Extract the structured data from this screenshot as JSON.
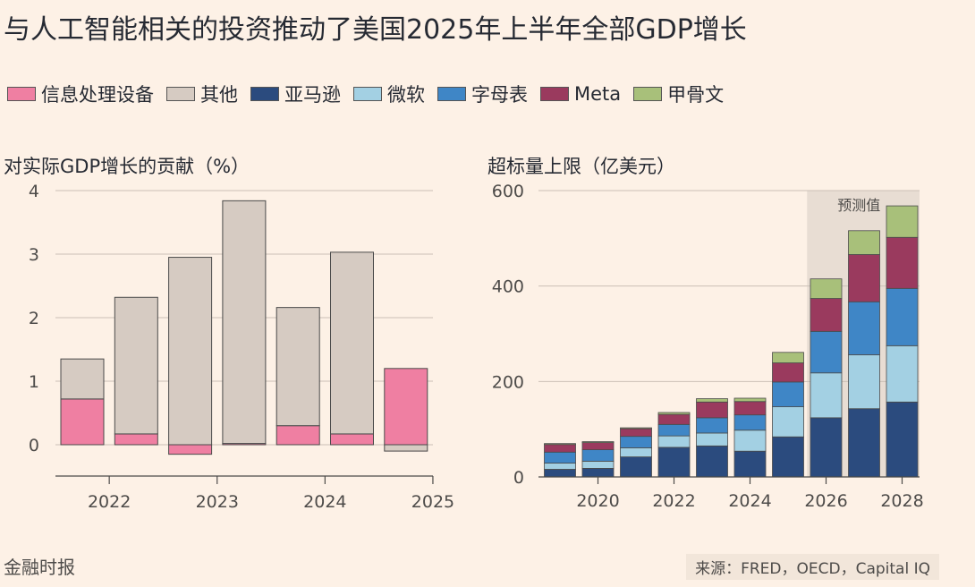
{
  "title": "与人工智能相关的投资推动了美国2025年上半年全部GDP增长",
  "legend": [
    {
      "name": "信息处理设备",
      "color": "#ef7fa2"
    },
    {
      "name": "其他",
      "color": "#d6cbc2"
    },
    {
      "name": "亚马逊",
      "color": "#2b4b7e"
    },
    {
      "name": "微软",
      "color": "#a3d0e3"
    },
    {
      "name": "字母表",
      "color": "#3f86c6"
    },
    {
      "name": "Meta",
      "color": "#9a3a5e"
    },
    {
      "name": "甲骨文",
      "color": "#a8c07a"
    }
  ],
  "footer": {
    "source_left": "金融时报",
    "source_right": "来源：FRED，OECD，Capital IQ"
  },
  "chart_data": [
    {
      "type": "bar",
      "title": "对实际GDP增长的贡献（%）",
      "stacked": true,
      "x_tick_labels": [
        "2022",
        "2023",
        "2024",
        "2025"
      ],
      "x_tick_positions": [
        0.5,
        2.5,
        4.5,
        6.5
      ],
      "categories": [
        "2022 H1",
        "2022 H2",
        "2023 H1",
        "2023 H2",
        "2024 H1",
        "2024 H2",
        "2025 H1"
      ],
      "ylim": [
        -0.4,
        4
      ],
      "yticks": [
        0,
        1,
        2,
        3,
        4
      ],
      "series": [
        {
          "name": "信息处理设备",
          "color": "#ef7fa2",
          "values": [
            0.72,
            0.17,
            -0.15,
            0.02,
            0.3,
            0.17,
            1.2
          ]
        },
        {
          "name": "其他",
          "color": "#d6cbc2",
          "values": [
            0.63,
            2.15,
            2.95,
            3.82,
            1.86,
            2.86,
            -0.1
          ]
        }
      ]
    },
    {
      "type": "bar",
      "title": "超标量上限（亿美元）",
      "stacked": true,
      "annotation": "预测值",
      "forecast_from_category": 2026,
      "categories": [
        2019,
        2020,
        2021,
        2022,
        2023,
        2024,
        2025,
        2026,
        2027,
        2028
      ],
      "x_tick_labels": [
        "2020",
        "2022",
        "2024",
        "2026",
        "2028"
      ],
      "x_tick_values": [
        2020,
        2022,
        2024,
        2026,
        2028
      ],
      "ylim": [
        0,
        600
      ],
      "yticks": [
        0,
        200,
        400,
        600
      ],
      "series": [
        {
          "name": "亚马逊",
          "color": "#2b4b7e",
          "values": [
            16,
            18,
            42,
            62,
            65,
            54,
            84,
            124,
            143,
            157
          ]
        },
        {
          "name": "微软",
          "color": "#a3d0e3",
          "values": [
            13,
            15,
            19,
            24,
            27,
            44,
            63,
            94,
            113,
            118
          ]
        },
        {
          "name": "字母表",
          "color": "#3f86c6",
          "values": [
            23,
            24,
            24,
            24,
            32,
            32,
            52,
            87,
            111,
            120
          ]
        },
        {
          "name": "Meta",
          "color": "#9a3a5e",
          "values": [
            16,
            15,
            16,
            21,
            33,
            28,
            40,
            69,
            99,
            107
          ]
        },
        {
          "name": "甲骨文",
          "color": "#a8c07a",
          "values": [
            2,
            2,
            2,
            4,
            7,
            7,
            22,
            41,
            50,
            66
          ]
        }
      ]
    }
  ]
}
